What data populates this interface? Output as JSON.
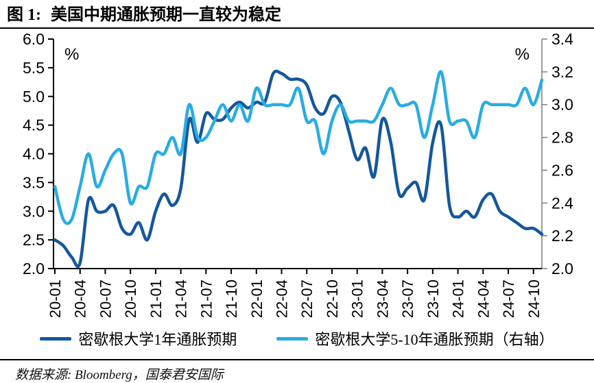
{
  "header": {
    "figure_label": "图 1:",
    "title": "美国中期通胀预期一直较为稳定"
  },
  "footer": {
    "source": "数据来源: Bloomberg，国泰君安国际"
  },
  "chart_data": {
    "type": "line",
    "months": [
      "2020-01",
      "2020-02",
      "2020-03",
      "2020-04",
      "2020-05",
      "2020-06",
      "2020-07",
      "2020-08",
      "2020-09",
      "2020-10",
      "2020-11",
      "2020-12",
      "2021-01",
      "2021-02",
      "2021-03",
      "2021-04",
      "2021-05",
      "2021-06",
      "2021-07",
      "2021-08",
      "2021-09",
      "2021-10",
      "2021-11",
      "2021-12",
      "2022-01",
      "2022-02",
      "2022-03",
      "2022-04",
      "2022-05",
      "2022-06",
      "2022-07",
      "2022-08",
      "2022-09",
      "2022-10",
      "2022-11",
      "2022-12",
      "2023-01",
      "2023-02",
      "2023-03",
      "2023-04",
      "2023-05",
      "2023-06",
      "2023-07",
      "2023-08",
      "2023-09",
      "2023-10",
      "2023-11",
      "2023-12",
      "2024-01",
      "2024-02",
      "2024-03",
      "2024-04",
      "2024-05",
      "2024-06",
      "2024-07",
      "2024-08",
      "2024-09",
      "2024-10",
      "2024-11"
    ],
    "x_tick_labels": [
      "20-01",
      "20-04",
      "20-07",
      "20-10",
      "21-01",
      "21-04",
      "21-07",
      "21-10",
      "22-01",
      "22-04",
      "22-07",
      "22-10",
      "23-01",
      "23-04",
      "23-07",
      "23-10",
      "24-01",
      "24-04",
      "24-07",
      "24-10"
    ],
    "x_tick_every": 3,
    "series": [
      {
        "name": "密歇根大学1年通胀预期",
        "axis": "left",
        "color": "#15579C",
        "values": [
          2.5,
          2.4,
          2.2,
          2.1,
          3.2,
          3.0,
          3.0,
          3.1,
          2.7,
          2.6,
          2.8,
          2.5,
          3.0,
          3.3,
          3.1,
          3.4,
          4.6,
          4.2,
          4.7,
          4.6,
          4.6,
          4.8,
          4.9,
          4.8,
          4.9,
          4.9,
          5.4,
          5.4,
          5.3,
          5.3,
          5.2,
          4.8,
          4.7,
          5.0,
          4.9,
          4.4,
          3.9,
          4.1,
          3.6,
          4.6,
          4.2,
          3.3,
          3.4,
          3.5,
          3.2,
          4.2,
          4.5,
          3.1,
          2.9,
          3.0,
          2.9,
          3.2,
          3.3,
          3.0,
          2.9,
          2.8,
          2.7,
          2.7,
          2.6
        ]
      },
      {
        "name": "密歇根大学5-10年通胀预期（右轴）",
        "axis": "right",
        "color": "#29ACE3",
        "values": [
          2.5,
          2.3,
          2.3,
          2.5,
          2.7,
          2.5,
          2.6,
          2.7,
          2.7,
          2.4,
          2.5,
          2.5,
          2.7,
          2.7,
          2.8,
          2.7,
          3.0,
          2.8,
          2.8,
          2.9,
          3.0,
          2.9,
          3.0,
          2.9,
          3.1,
          3.0,
          3.0,
          3.0,
          3.0,
          3.1,
          2.9,
          2.9,
          2.7,
          2.9,
          3.0,
          2.9,
          2.9,
          2.9,
          2.9,
          3.0,
          3.1,
          3.0,
          3.0,
          3.0,
          2.8,
          3.0,
          3.2,
          2.9,
          2.9,
          2.9,
          2.8,
          3.0,
          3.0,
          3.0,
          3.0,
          3.0,
          3.1,
          3.0,
          3.15
        ]
      }
    ],
    "left_axis": {
      "label": "%",
      "min": 2.0,
      "max": 6.0,
      "step": 0.5
    },
    "right_axis": {
      "label": "%",
      "min": 2.0,
      "max": 3.4,
      "step": 0.2
    },
    "legend_position": "bottom",
    "grid": false
  }
}
